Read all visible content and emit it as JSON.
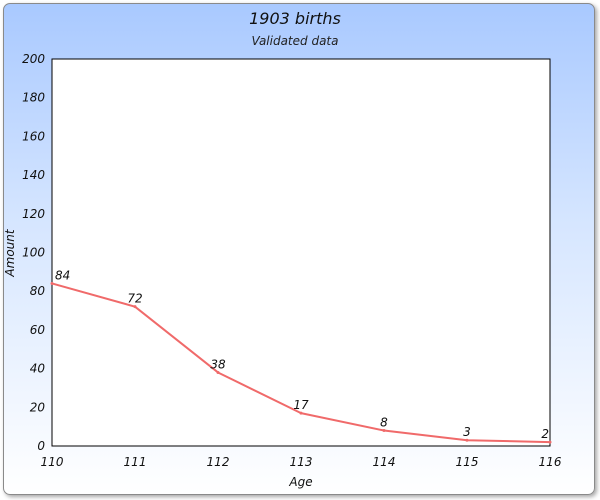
{
  "chart_data": {
    "type": "line",
    "title": "1903 births",
    "subtitle": "Validated data",
    "xlabel": "Age",
    "ylabel": "Amount",
    "x": [
      110,
      111,
      112,
      113,
      114,
      115,
      116
    ],
    "series": [
      {
        "values": [
          84,
          72,
          38,
          17,
          8,
          3,
          2
        ],
        "color": "#f06a6a"
      }
    ],
    "xlim": [
      110,
      116
    ],
    "ylim": [
      0,
      200
    ],
    "yticks": [
      0,
      20,
      40,
      60,
      80,
      100,
      120,
      140,
      160,
      180,
      200
    ],
    "grid": false,
    "legend": "none"
  }
}
